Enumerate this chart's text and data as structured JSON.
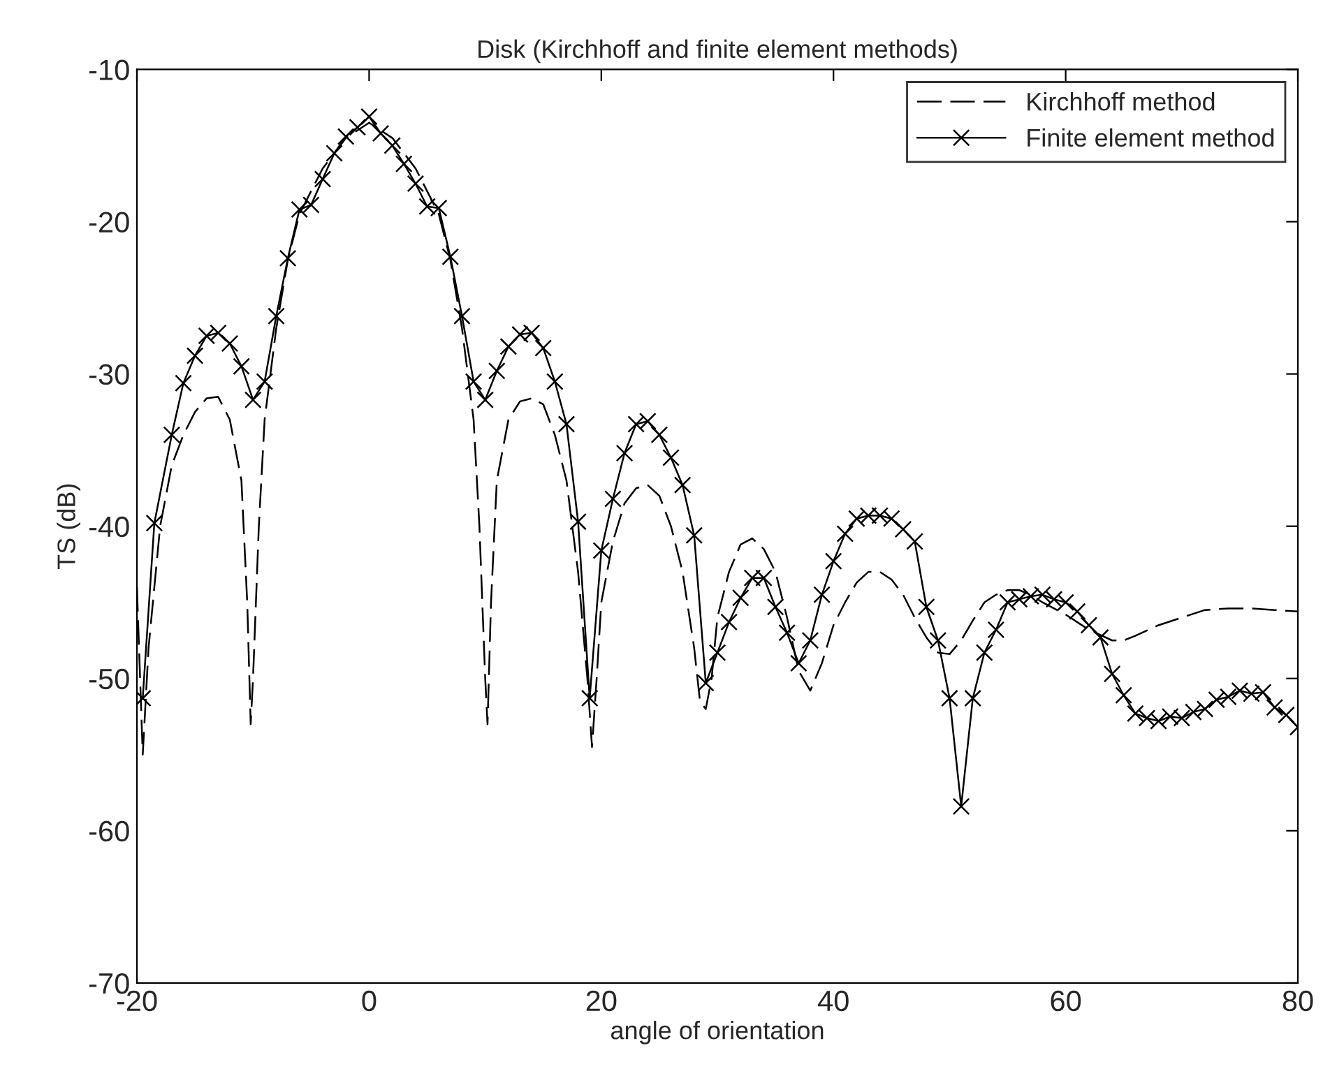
{
  "chart_data": {
    "type": "line",
    "title": "Disk (Kirchhoff and finite element methods)",
    "xlabel": "angle of orientation",
    "ylabel": "TS (dB)",
    "xlim": [
      -20,
      80
    ],
    "ylim": [
      -70,
      -10
    ],
    "xticks": [
      -20,
      0,
      20,
      40,
      60,
      80
    ],
    "yticks": [
      -70,
      -60,
      -50,
      -40,
      -30,
      -20,
      -10
    ],
    "grid": false,
    "legend": "top right",
    "series": [
      {
        "name": "Kirchhoff method",
        "color": "#000000",
        "line_style": "dashed",
        "marker": "none",
        "x": [
          -20,
          -19.5,
          -19,
          -18,
          -17,
          -16,
          -15,
          -14,
          -13,
          -12,
          -11,
          -10.5,
          -10.2,
          -10,
          -9.5,
          -9,
          -8,
          -7,
          -6,
          -4,
          -2,
          0,
          2,
          4,
          6,
          7,
          8,
          9,
          9.5,
          10,
          10.2,
          10.5,
          11,
          12,
          13,
          14,
          15,
          16,
          17,
          18,
          18.8,
          19.2,
          19.6,
          20,
          21,
          22,
          23,
          24,
          25,
          26,
          27,
          28,
          28.5,
          29,
          29.5,
          30,
          31,
          32,
          33,
          34,
          35,
          36,
          37,
          38,
          39,
          40,
          41,
          42,
          43,
          44,
          45,
          46,
          47,
          48,
          49,
          50,
          51,
          52,
          53,
          54,
          55,
          56,
          57,
          58,
          60,
          62,
          64,
          65,
          66,
          68,
          70,
          72,
          74,
          76,
          78,
          80
        ],
        "values": [
          -44,
          -55,
          -48,
          -40,
          -36,
          -34,
          -32.5,
          -31.6,
          -31.5,
          -33,
          -37,
          -45,
          -53,
          -50,
          -40,
          -33,
          -27,
          -22.5,
          -19.5,
          -16.5,
          -14.5,
          -13.5,
          -14.5,
          -16.5,
          -19.5,
          -22.5,
          -27,
          -33,
          -40,
          -50,
          -53,
          -45,
          -37,
          -33,
          -31.8,
          -31.6,
          -32,
          -34,
          -37,
          -43,
          -50,
          -54.5,
          -50,
          -45,
          -41,
          -38.5,
          -37.5,
          -37.3,
          -38,
          -40,
          -43,
          -48,
          -51.5,
          -52,
          -50,
          -46,
          -43,
          -41.2,
          -40.8,
          -41.5,
          -43,
          -46,
          -49.5,
          -50.8,
          -49,
          -46.5,
          -45,
          -43.7,
          -43,
          -43,
          -43.5,
          -44.5,
          -46,
          -47.3,
          -48.3,
          -48.4,
          -47.5,
          -46.2,
          -45,
          -44.5,
          -44.2,
          -44.2,
          -44.5,
          -45,
          -45.8,
          -46.8,
          -47.5,
          -47.5,
          -47.2,
          -46.5,
          -46,
          -45.5,
          -45.4,
          -45.4,
          -45.5,
          -45.6
        ]
      },
      {
        "name": "Finite element method",
        "color": "#000000",
        "line_style": "solid",
        "marker": "cross",
        "x": [
          -19.5,
          -18.5,
          -17,
          -16,
          -15,
          -14,
          -13,
          -12,
          -11,
          -10,
          -9,
          -8,
          -7,
          -6,
          -5,
          -4,
          -3,
          -2,
          -1,
          0,
          1,
          2,
          3,
          4,
          5,
          6,
          7,
          8,
          9,
          10,
          11,
          12,
          13,
          14,
          15,
          16,
          17,
          18,
          19,
          20,
          21,
          22,
          23,
          24,
          25,
          26,
          27,
          28,
          29,
          30,
          31,
          32,
          33,
          34,
          35,
          36,
          37,
          38,
          39,
          40,
          41,
          42,
          43,
          44,
          45,
          46,
          47,
          48,
          49,
          50,
          51,
          52,
          53,
          54,
          55,
          56,
          57,
          58,
          59,
          60,
          61,
          62,
          63,
          64,
          65,
          66,
          67,
          68,
          69,
          70,
          71,
          72,
          73,
          74,
          75,
          76,
          77,
          78,
          79,
          80
        ],
        "values": [
          -51.3,
          -39.8,
          -34,
          -30.6,
          -28.8,
          -27.5,
          -27.3,
          -28,
          -29.5,
          -31.7,
          -30.5,
          -26.2,
          -22.4,
          -19.2,
          -18.9,
          -17.2,
          -15.5,
          -14.4,
          -13.8,
          -13.1,
          -14.2,
          -15,
          -16.2,
          -17.5,
          -19,
          -19.1,
          -22.3,
          -26.2,
          -30.5,
          -31.7,
          -29.8,
          -28.2,
          -27.4,
          -27.3,
          -28.3,
          -30.5,
          -33.3,
          -39.7,
          -51.3,
          -41.6,
          -38.2,
          -35.2,
          -33.3,
          -33.1,
          -34,
          -35.5,
          -37.3,
          -40.6,
          -50.3,
          -48.3,
          -46.3,
          -44.7,
          -43.4,
          -43.4,
          -45.3,
          -47,
          -49,
          -47.5,
          -44.5,
          -42.3,
          -40.5,
          -39.5,
          -39.3,
          -39.3,
          -39.5,
          -40.2,
          -41,
          -45.3,
          -47.5,
          -51.3,
          -58.4,
          -51.3,
          -48.3,
          -46.8,
          -45,
          -44.8,
          -44.6,
          -44.5,
          -44.8,
          -45,
          -45.6,
          -46.5,
          -47.3,
          -49.7,
          -51.1,
          -52.3,
          -52.6,
          -52.8,
          -52.5,
          -52.6,
          -52.2,
          -52,
          -51.4,
          -51.2,
          -50.8,
          -51,
          -50.9,
          -51.9,
          -52.4,
          -53.2
        ]
      }
    ]
  }
}
